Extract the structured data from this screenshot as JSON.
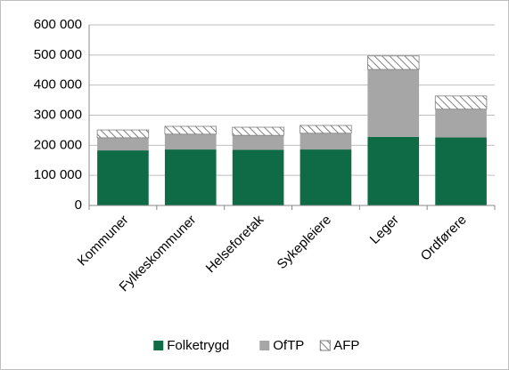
{
  "chart_data": {
    "type": "stacked_bar",
    "categories": [
      "Kommuner",
      "Fylkeskommuner",
      "Helseforetak",
      "Sykepleiere",
      "Leger",
      "Ordførere"
    ],
    "series": [
      {
        "name": "Folketrygd",
        "color": "#0e6b45",
        "values": [
          183000,
          186000,
          185000,
          186000,
          228000,
          226000
        ]
      },
      {
        "name": "OfTP",
        "color": "#a6a6a6",
        "values": [
          42000,
          51000,
          48000,
          54000,
          224000,
          94000
        ]
      },
      {
        "name": "AFP",
        "color": "#7f7f7f",
        "hatch": true,
        "values": [
          26000,
          26000,
          27000,
          26000,
          45000,
          44000
        ]
      }
    ],
    "ylim": [
      0,
      600000
    ],
    "yticks": [
      0,
      {
        "value": 100000,
        "label": "100 000"
      },
      {
        "value": 200000,
        "label": "200 000"
      },
      {
        "value": 300000,
        "label": "300 000"
      },
      {
        "value": 400000,
        "label": "400 000"
      },
      {
        "value": 500000,
        "label": "500 000"
      },
      {
        "value": 600000,
        "label": "600 000"
      }
    ],
    "grid": true,
    "legend": "bottom"
  }
}
